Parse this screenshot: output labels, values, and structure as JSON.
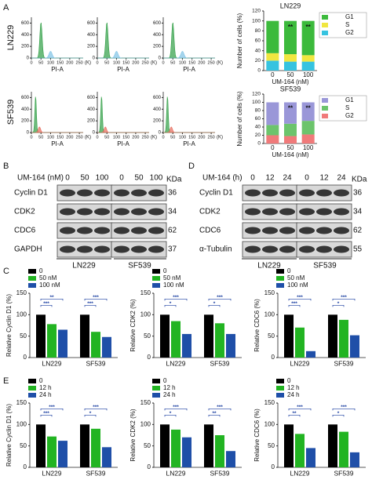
{
  "panel_a": {
    "label": "A",
    "cell_lines": [
      "LN229",
      "SF539"
    ],
    "hist_xlabel": "PI-A",
    "hist_xunit": "(K)",
    "hist_xlim": [
      0,
      270
    ],
    "hist_xticks": [
      0,
      50,
      100,
      150,
      200,
      250
    ],
    "hist_ylim": [
      0,
      700
    ],
    "hist_yticks": [
      0,
      200,
      400,
      600
    ],
    "cycle_charts": [
      {
        "type": "stacked-bar",
        "title": "LN229",
        "xlabel": "UM-164 (nM)",
        "ylabel": "Number of cells (%)",
        "categories": [
          "0",
          "50",
          "100"
        ],
        "ylim": [
          0,
          120
        ],
        "yticks": [
          0,
          20,
          40,
          60,
          80,
          100,
          120
        ],
        "series": [
          {
            "name": "G2",
            "color": "#36c3e0",
            "values": [
              20,
              18,
              18
            ]
          },
          {
            "name": "S",
            "color": "#f0e640",
            "values": [
              15,
              15,
              13
            ]
          },
          {
            "name": "G1",
            "color": "#3cba3c",
            "values": [
              65,
              67,
              69
            ]
          }
        ],
        "stars": [
          "**",
          "**"
        ]
      },
      {
        "type": "stacked-bar",
        "title": "SF539",
        "xlabel": "UM-164 (nM)",
        "ylabel": "Number of cells (%)",
        "categories": [
          "0",
          "50",
          "100"
        ],
        "ylim": [
          0,
          120
        ],
        "yticks": [
          0,
          20,
          40,
          60,
          80,
          100,
          120
        ],
        "series": [
          {
            "name": "G2",
            "color": "#f07a7a",
            "values": [
              20,
              18,
              22
            ]
          },
          {
            "name": "S",
            "color": "#6cc46c",
            "values": [
              25,
              30,
              33
            ]
          },
          {
            "name": "G1",
            "color": "#9a97d8",
            "values": [
              55,
              52,
              45
            ]
          }
        ],
        "stars": [
          "**",
          "**"
        ]
      }
    ]
  },
  "blots": [
    {
      "label": "B",
      "treatment": "UM-164 (nM)",
      "lanes": [
        "0",
        "50",
        "100"
      ],
      "unit": "KDa",
      "proteins": [
        {
          "name": "Cyclin D1",
          "kda": 36
        },
        {
          "name": "CDK2",
          "kda": 34
        },
        {
          "name": "CDC6",
          "kda": 62
        },
        {
          "name": "GAPDH",
          "kda": 37
        }
      ],
      "cell_lines": [
        "LN229",
        "SF539"
      ]
    },
    {
      "label": "D",
      "treatment": "UM-164 (h)",
      "lanes": [
        "0",
        "12",
        "24"
      ],
      "unit": "KDa",
      "proteins": [
        {
          "name": "Cyclin D1",
          "kda": 36
        },
        {
          "name": "CDK2",
          "kda": 34
        },
        {
          "name": "CDC6",
          "kda": 62
        },
        {
          "name": "α-Tubulin",
          "kda": 55
        }
      ],
      "cell_lines": [
        "LN229",
        "SF539"
      ]
    }
  ],
  "quant_panels": [
    {
      "label": "C",
      "legend": [
        "0",
        "50 nM",
        "100 nM"
      ],
      "charts": [
        {
          "type": "bar",
          "ylabel": "Relative Cyclin D1 (%)",
          "categories": [
            "LN229",
            "SF539"
          ],
          "ylim": [
            0,
            150
          ],
          "yticks": [
            0,
            50,
            100,
            150
          ],
          "series": [
            {
              "color": "#000000",
              "values": [
                100,
                100
              ]
            },
            {
              "color": "#22b422",
              "values": [
                78,
                60
              ]
            },
            {
              "color": "#1f4fa8",
              "values": [
                65,
                48
              ]
            }
          ],
          "stars": [
            [
              "***",
              "**"
            ],
            [
              "***",
              "***"
            ]
          ]
        },
        {
          "type": "bar",
          "ylabel": "Relative CDK2 (%)",
          "categories": [
            "LN229",
            "SF539"
          ],
          "ylim": [
            0,
            150
          ],
          "yticks": [
            0,
            50,
            100,
            150
          ],
          "series": [
            {
              "color": "#000000",
              "values": [
                100,
                100
              ]
            },
            {
              "color": "#22b422",
              "values": [
                85,
                80
              ]
            },
            {
              "color": "#1f4fa8",
              "values": [
                55,
                55
              ]
            }
          ],
          "stars": [
            [
              "*",
              "***"
            ],
            [
              "*",
              "***"
            ]
          ]
        },
        {
          "type": "bar",
          "ylabel": "Relative CDC6 (%)",
          "categories": [
            "LN229",
            "SF539"
          ],
          "ylim": [
            0,
            150
          ],
          "yticks": [
            0,
            50,
            100,
            150
          ],
          "series": [
            {
              "color": "#000000",
              "values": [
                100,
                100
              ]
            },
            {
              "color": "#22b422",
              "values": [
                70,
                88
              ]
            },
            {
              "color": "#1f4fa8",
              "values": [
                15,
                52
              ]
            }
          ],
          "stars": [
            [
              "***",
              "***"
            ],
            [
              "*",
              "***"
            ]
          ]
        }
      ]
    },
    {
      "label": "E",
      "legend": [
        "0",
        "12 h",
        "24 h"
      ],
      "charts": [
        {
          "type": "bar",
          "ylabel": "Relative Cyclin D1 (%)",
          "categories": [
            "LN229",
            "SF539"
          ],
          "ylim": [
            0,
            150
          ],
          "yticks": [
            0,
            50,
            100,
            150
          ],
          "series": [
            {
              "color": "#000000",
              "values": [
                100,
                100
              ]
            },
            {
              "color": "#22b422",
              "values": [
                72,
                90
              ]
            },
            {
              "color": "#1f4fa8",
              "values": [
                62,
                47
              ]
            }
          ],
          "stars": [
            [
              "***",
              "***"
            ],
            [
              "*",
              "***"
            ]
          ]
        },
        {
          "type": "bar",
          "ylabel": "Relative CDK2 (%)",
          "categories": [
            "LN229",
            "SF539"
          ],
          "ylim": [
            0,
            150
          ],
          "yticks": [
            0,
            50,
            100,
            150
          ],
          "series": [
            {
              "color": "#000000",
              "values": [
                100,
                100
              ]
            },
            {
              "color": "#22b422",
              "values": [
                88,
                75
              ]
            },
            {
              "color": "#1f4fa8",
              "values": [
                70,
                38
              ]
            }
          ],
          "stars": [
            [
              "*",
              "***"
            ],
            [
              "**",
              "***"
            ]
          ]
        },
        {
          "type": "bar",
          "ylabel": "Relative CDC6 (%)",
          "categories": [
            "LN229",
            "SF539"
          ],
          "ylim": [
            0,
            150
          ],
          "yticks": [
            0,
            50,
            100,
            150
          ],
          "series": [
            {
              "color": "#000000",
              "values": [
                100,
                100
              ]
            },
            {
              "color": "#22b422",
              "values": [
                78,
                83
              ]
            },
            {
              "color": "#1f4fa8",
              "values": [
                45,
                35
              ]
            }
          ],
          "stars": [
            [
              "**",
              "***"
            ],
            [
              "*",
              "***"
            ]
          ]
        }
      ]
    }
  ]
}
